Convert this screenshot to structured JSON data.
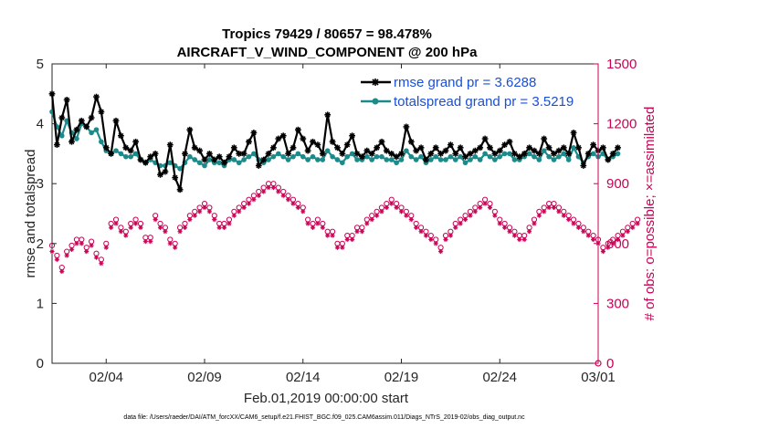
{
  "chart_data": {
    "type": "line",
    "title": "Tropics 79429 / 80657 = 98.478%",
    "subtitle": "AIRCRAFT_V_WIND_COMPONENT @ 200 hPa",
    "xlabel": "Feb.01,2019 00:00:00 start",
    "ylabel_left": "rmse and totalspread",
    "ylabel_right": "# of obs: o=possible; ×=assimilated",
    "footnote": "data file: /Users/raeder/DAI/ATM_forcXX/CAM6_setup/f.e21.FHIST_BGC.f09_025.CAM6assim.011/Diags_NTrS_2019-02/obs_diag_output.nc",
    "x_tick_labels": [
      "02/04",
      "02/09",
      "02/14",
      "02/19",
      "02/24",
      "03/01"
    ],
    "x_tick_days": [
      3,
      8,
      13,
      18,
      23,
      28
    ],
    "x_range_days": [
      0.25,
      28
    ],
    "ylim_left": [
      0,
      5
    ],
    "yticks_left": [
      "0",
      "1",
      "2",
      "3",
      "4",
      "5"
    ],
    "ylim_right": [
      0,
      1500
    ],
    "yticks_right": [
      "0",
      "300",
      "600",
      "900",
      "1200",
      "1500"
    ],
    "x_step_days": 0.25,
    "series": [
      {
        "name": "rmse grand pr = 3.6288",
        "color": "#000000",
        "marker": "asterisk",
        "values": [
          4.5,
          3.65,
          4.1,
          4.4,
          3.7,
          3.9,
          4.05,
          3.95,
          4.1,
          4.45,
          4.2,
          3.6,
          3.5,
          4.05,
          3.8,
          3.6,
          3.55,
          3.7,
          3.4,
          3.35,
          3.45,
          3.5,
          3.15,
          3.2,
          3.65,
          3.1,
          2.9,
          3.5,
          3.9,
          3.6,
          3.55,
          3.4,
          3.5,
          3.4,
          3.45,
          3.35,
          3.45,
          3.6,
          3.5,
          3.5,
          3.7,
          3.85,
          3.3,
          3.4,
          3.5,
          3.6,
          3.75,
          3.8,
          3.5,
          3.6,
          3.9,
          3.75,
          3.55,
          3.7,
          3.65,
          3.5,
          4.15,
          3.7,
          3.6,
          3.5,
          3.65,
          3.8,
          3.5,
          3.45,
          3.55,
          3.5,
          3.6,
          3.7,
          3.55,
          3.5,
          3.45,
          3.5,
          3.95,
          3.7,
          3.55,
          3.6,
          3.4,
          3.5,
          3.6,
          3.5,
          3.55,
          3.65,
          3.5,
          3.6,
          3.45,
          3.5,
          3.55,
          3.6,
          3.75,
          3.6,
          3.5,
          3.55,
          3.65,
          3.7,
          3.5,
          3.45,
          3.5,
          3.6,
          3.55,
          3.5,
          3.75,
          3.6,
          3.5,
          3.55,
          3.6,
          3.5,
          3.85,
          3.6,
          3.3,
          3.5,
          3.65,
          3.55,
          3.6,
          3.4,
          3.5,
          3.6
        ]
      },
      {
        "name": "totalspread grand pr = 3.5219",
        "color": "#1b8a8a",
        "marker": "dot",
        "values": [
          4.2,
          3.95,
          3.8,
          4.05,
          3.85,
          3.75,
          4.0,
          3.95,
          3.85,
          3.9,
          3.7,
          3.55,
          3.5,
          3.55,
          3.5,
          3.45,
          3.45,
          3.5,
          3.4,
          3.35,
          3.4,
          3.35,
          3.3,
          3.3,
          3.35,
          3.3,
          3.25,
          3.35,
          3.45,
          3.4,
          3.35,
          3.3,
          3.4,
          3.35,
          3.35,
          3.3,
          3.4,
          3.4,
          3.35,
          3.4,
          3.45,
          3.5,
          3.4,
          3.35,
          3.4,
          3.45,
          3.5,
          3.45,
          3.4,
          3.45,
          3.5,
          3.45,
          3.4,
          3.45,
          3.4,
          3.4,
          3.55,
          3.45,
          3.4,
          3.35,
          3.45,
          3.5,
          3.4,
          3.4,
          3.45,
          3.4,
          3.45,
          3.45,
          3.4,
          3.4,
          3.35,
          3.4,
          3.55,
          3.45,
          3.4,
          3.45,
          3.35,
          3.4,
          3.45,
          3.4,
          3.4,
          3.45,
          3.4,
          3.45,
          3.35,
          3.4,
          3.45,
          3.4,
          3.5,
          3.45,
          3.4,
          3.45,
          3.5,
          3.5,
          3.4,
          3.4,
          3.45,
          3.5,
          3.45,
          3.4,
          3.55,
          3.45,
          3.4,
          3.45,
          3.5,
          3.4,
          3.6,
          3.45,
          3.35,
          3.45,
          3.5,
          3.45,
          3.5,
          3.4,
          3.45,
          3.5
        ]
      }
    ],
    "obs_counts": {
      "color": "#cc0055",
      "possible": [
        590,
        540,
        480,
        560,
        590,
        620,
        620,
        580,
        610,
        550,
        520,
        600,
        700,
        720,
        680,
        660,
        700,
        720,
        700,
        630,
        630,
        740,
        700,
        680,
        620,
        600,
        680,
        700,
        740,
        760,
        780,
        800,
        780,
        740,
        700,
        700,
        720,
        760,
        780,
        800,
        820,
        840,
        860,
        880,
        900,
        900,
        880,
        860,
        840,
        820,
        800,
        780,
        720,
        700,
        720,
        700,
        660,
        660,
        600,
        600,
        640,
        640,
        680,
        680,
        720,
        740,
        760,
        780,
        800,
        820,
        800,
        780,
        760,
        740,
        700,
        680,
        660,
        640,
        620,
        580,
        640,
        660,
        700,
        720,
        740,
        760,
        780,
        800,
        820,
        800,
        760,
        720,
        700,
        680,
        660,
        640,
        640,
        680,
        720,
        760,
        780,
        800,
        800,
        780,
        760,
        740,
        720,
        700,
        680,
        660,
        640,
        620,
        580,
        600,
        620,
        640,
        660,
        680,
        700,
        720
      ],
      "assimilated": [
        560,
        520,
        460,
        540,
        570,
        600,
        600,
        560,
        590,
        530,
        500,
        580,
        680,
        700,
        660,
        640,
        680,
        700,
        680,
        610,
        610,
        720,
        680,
        660,
        600,
        580,
        660,
        680,
        720,
        740,
        760,
        780,
        760,
        720,
        680,
        680,
        700,
        740,
        760,
        780,
        800,
        820,
        840,
        860,
        880,
        880,
        860,
        840,
        820,
        800,
        780,
        760,
        700,
        680,
        700,
        680,
        640,
        640,
        580,
        580,
        620,
        620,
        660,
        660,
        700,
        720,
        740,
        760,
        780,
        800,
        780,
        760,
        740,
        720,
        680,
        660,
        640,
        620,
        600,
        560,
        620,
        640,
        680,
        700,
        720,
        740,
        760,
        780,
        800,
        780,
        740,
        700,
        680,
        660,
        640,
        620,
        620,
        660,
        700,
        740,
        760,
        780,
        780,
        760,
        740,
        720,
        700,
        680,
        660,
        640,
        620,
        600,
        560,
        580,
        600,
        620,
        640,
        660,
        680,
        700
      ]
    }
  }
}
